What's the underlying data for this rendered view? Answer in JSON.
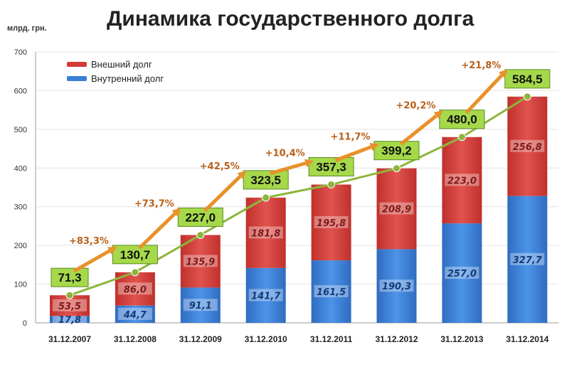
{
  "title": "Динамика государственного долга",
  "unit_label": "млрд. грн.",
  "chart_data": {
    "type": "bar",
    "stacked": true,
    "title": "Динамика государственного долга",
    "ylabel": "млрд. грн.",
    "ylim": [
      0,
      700
    ],
    "yticks": [
      0,
      100,
      200,
      300,
      400,
      500,
      600,
      700
    ],
    "grid": true,
    "legend_position": "top-left",
    "categories": [
      "31.12.2007",
      "31.12.2008",
      "31.12.2009",
      "31.12.2010",
      "31.12.2011",
      "31.12.2012",
      "31.12.2013",
      "31.12.2014"
    ],
    "series": [
      {
        "name": "Внутренний долг",
        "color": "#3a7fd5",
        "values": [
          17.8,
          44.7,
          91.1,
          141.7,
          161.5,
          190.3,
          257.0,
          327.7
        ],
        "labels": [
          "17,8",
          "44,7",
          "91,1",
          "141,7",
          "161,5",
          "190,3",
          "257,0",
          "327,7"
        ]
      },
      {
        "name": "Внешний долг",
        "color": "#d43a36",
        "values": [
          53.5,
          86.0,
          135.9,
          181.8,
          195.8,
          208.9,
          223.0,
          256.8
        ],
        "labels": [
          "53,5",
          "86,0",
          "135,9",
          "181,8",
          "195,8",
          "208,9",
          "223,0",
          "256,8"
        ]
      }
    ],
    "totals": {
      "values": [
        71.3,
        130.7,
        227.0,
        323.5,
        357.3,
        399.2,
        480.0,
        584.5
      ],
      "labels": [
        "71,3",
        "130,7",
        "227,0",
        "323,5",
        "357,3",
        "399,2",
        "480,0",
        "584,5"
      ],
      "line_color": "#8db53c",
      "box_color": "#a6d94a"
    },
    "growth": {
      "labels": [
        "+83,3%",
        "+73,7%",
        "+42,5%",
        "+10,4%",
        "+11,7%",
        "+20,2%",
        "+21,8%"
      ],
      "color": "#e8912a"
    }
  }
}
